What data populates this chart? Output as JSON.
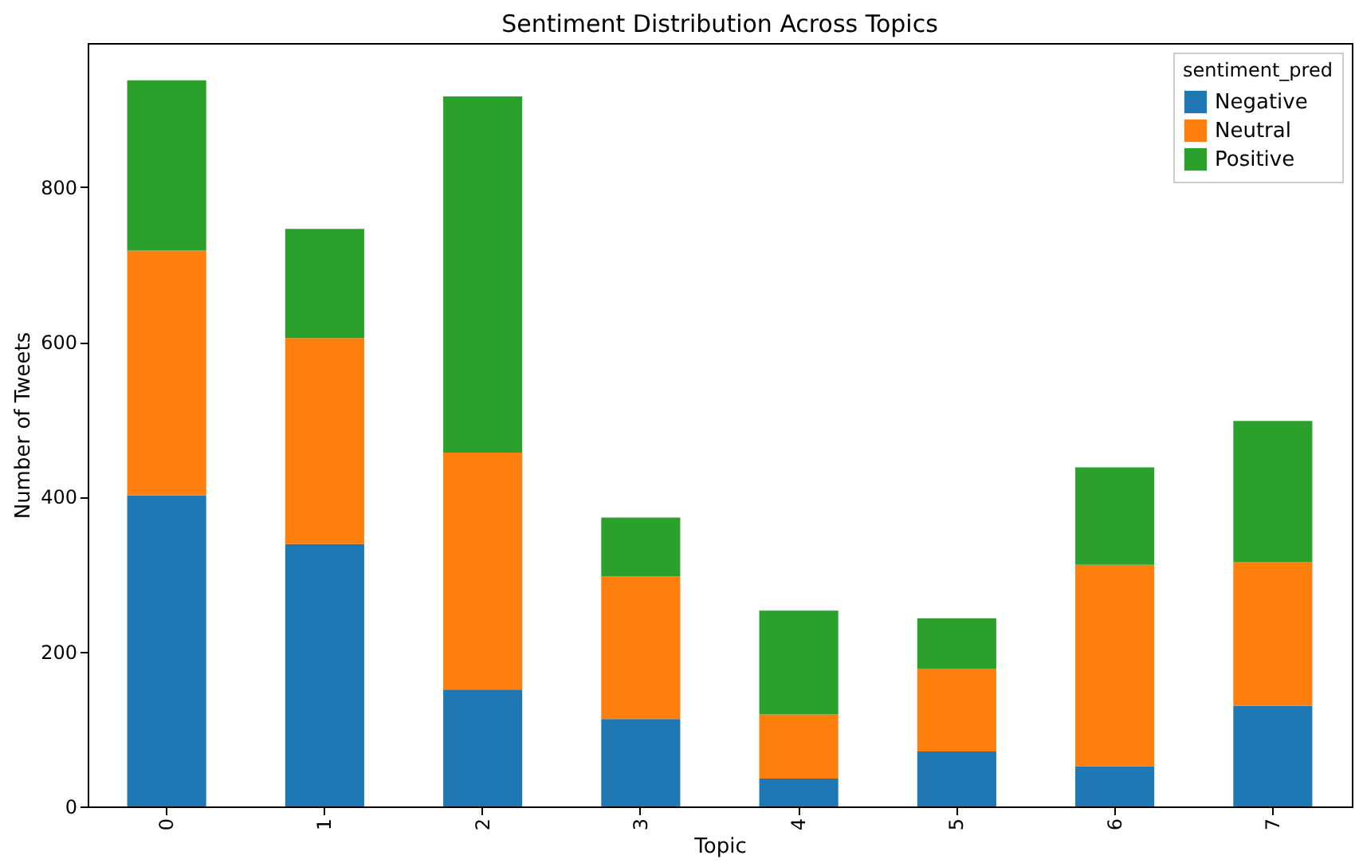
{
  "chart_data": {
    "type": "bar",
    "title": "Sentiment Distribution Across Topics",
    "xlabel": "Topic",
    "ylabel": "Number of Tweets",
    "legend_title": "sentiment_pred",
    "categories": [
      "0",
      "1",
      "2",
      "3",
      "4",
      "5",
      "6",
      "7"
    ],
    "series": [
      {
        "name": "Negative",
        "color": "#1f77b4",
        "values": [
          402,
          339,
          151,
          113,
          36,
          71,
          52,
          130
        ]
      },
      {
        "name": "Neutral",
        "color": "#ff7f0e",
        "values": [
          316,
          266,
          306,
          184,
          83,
          107,
          260,
          186
        ]
      },
      {
        "name": "Positive",
        "color": "#2ca02c",
        "values": [
          220,
          141,
          460,
          76,
          134,
          65,
          126,
          182
        ]
      }
    ],
    "stacked": true,
    "ylim": [
      0,
      986
    ],
    "yticks": [
      0,
      200,
      400,
      600,
      800
    ],
    "grid": false,
    "legend": "top right"
  }
}
